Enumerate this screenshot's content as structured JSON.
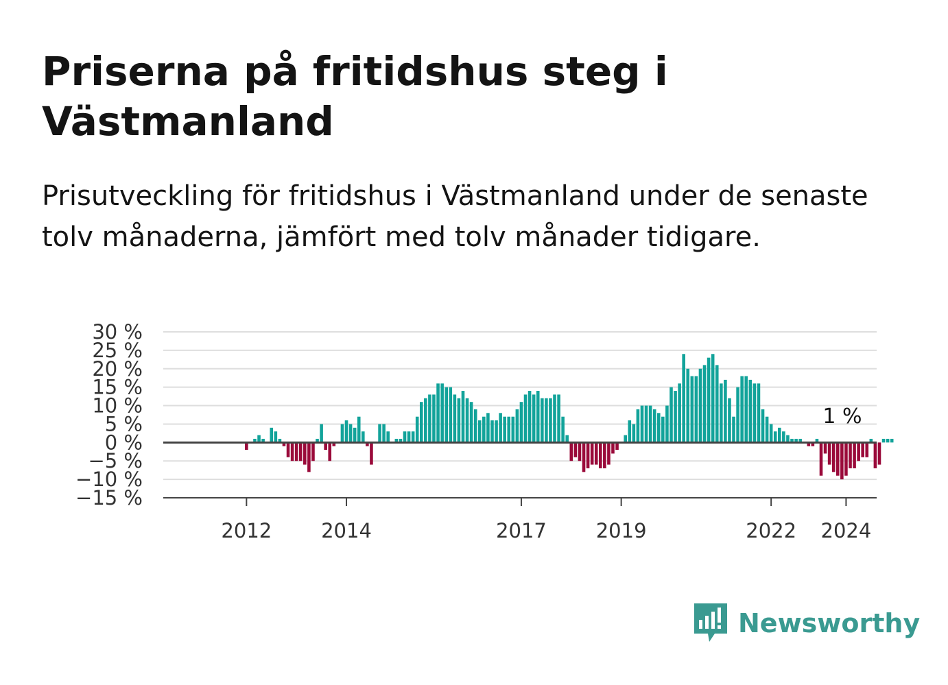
{
  "title": "Priserna på fritidshus steg i Västmanland",
  "subtitle": "Prisutveckling för fritidshus i Västmanland under de senaste tolv månaderna, jämfört med tolv månader tidigare.",
  "brand": {
    "name": "Newsworthy",
    "color": "#3a9a91",
    "icon": "newsworthy-logo-icon"
  },
  "colors": {
    "positive": "#12a39a",
    "negative": "#9a0a3a",
    "grid": "#dedede",
    "axis": "#444444"
  },
  "chart_data": {
    "type": "bar",
    "x_start": "2011-01",
    "x_step": "month",
    "yticks": [
      "30 %",
      "25 %",
      "20 %",
      "15 %",
      "10 %",
      "5 %",
      "0 %",
      "−5 %",
      "−10 %",
      "−15 %"
    ],
    "ytick_values": [
      30,
      25,
      20,
      15,
      10,
      5,
      0,
      -5,
      -10,
      -15
    ],
    "ylim": [
      -15,
      30
    ],
    "xticks": [
      {
        "label": "2012",
        "date": "2012-01"
      },
      {
        "label": "2014",
        "date": "2014-01"
      },
      {
        "label": "2017",
        "date": "2017-07"
      },
      {
        "label": "2019",
        "date": "2019-07"
      },
      {
        "label": "2022",
        "date": "2022-07"
      },
      {
        "label": "2024",
        "date": "2024-01"
      }
    ],
    "annotation": "1 %",
    "grid": true,
    "values": [
      0,
      0,
      0,
      0,
      0,
      0,
      0,
      0,
      0,
      0,
      0,
      0,
      -2,
      0,
      1,
      2,
      1,
      0,
      4,
      3,
      1,
      -1,
      -4,
      -5,
      -5,
      -5,
      -6,
      -8,
      -5,
      1,
      5,
      -2,
      -5,
      -1,
      0,
      5,
      6,
      5,
      4,
      7,
      3,
      -1,
      -6,
      0,
      5,
      5,
      3,
      0,
      1,
      1,
      3,
      3,
      3,
      7,
      11,
      12,
      13,
      13,
      16,
      16,
      15,
      15,
      13,
      12,
      14,
      12,
      11,
      9,
      6,
      7,
      8,
      6,
      6,
      8,
      7,
      7,
      7,
      9,
      11,
      13,
      14,
      13,
      14,
      12,
      12,
      12,
      13,
      13,
      7,
      2,
      -5,
      -4,
      -5,
      -8,
      -7,
      -6,
      -6,
      -7,
      -7,
      -6,
      -3,
      -2,
      0,
      2,
      6,
      5,
      9,
      10,
      10,
      10,
      9,
      8,
      7,
      10,
      15,
      14,
      16,
      24,
      20,
      18,
      18,
      20,
      21,
      23,
      24,
      21,
      16,
      17,
      12,
      7,
      15,
      18,
      18,
      17,
      16,
      16,
      9,
      7,
      5,
      3,
      4,
      3,
      2,
      1,
      1,
      1,
      0,
      -1,
      -1,
      1,
      -9,
      -3,
      -6,
      -8,
      -9,
      -10,
      -9,
      -7,
      -7,
      -5,
      -4,
      -4,
      1,
      -7,
      -6,
      1,
      1,
      1
    ]
  }
}
